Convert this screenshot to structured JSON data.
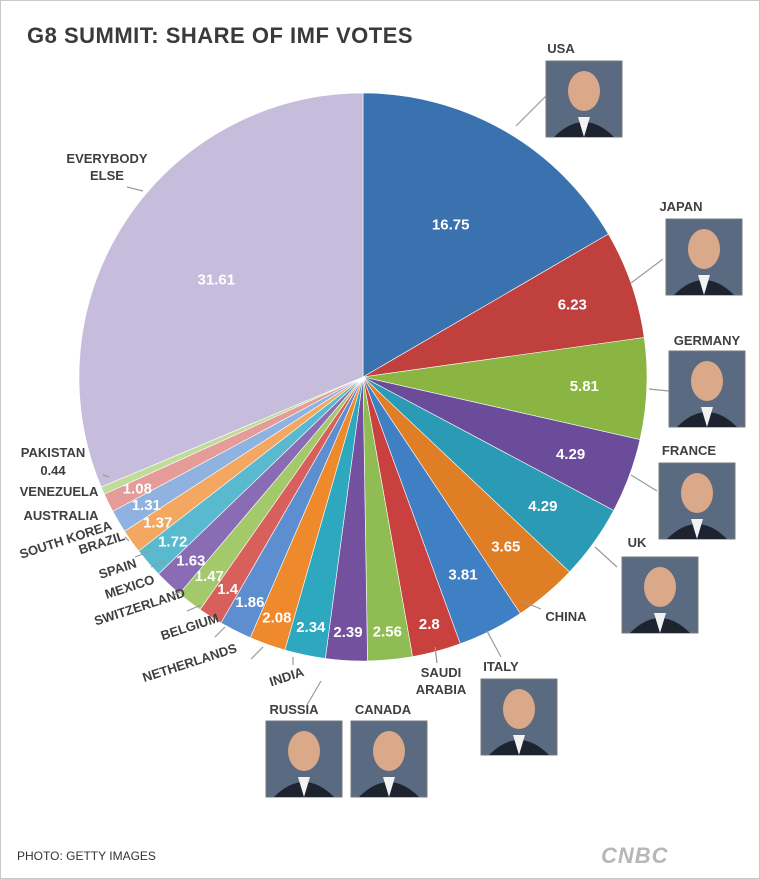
{
  "title": "G8 SUMMIT: SHARE OF IMF VOTES",
  "credit": "PHOTO: GETTY IMAGES",
  "brand": "CNBC",
  "chart_data": {
    "type": "pie",
    "title": "G8 SUMMIT: SHARE OF IMF VOTES",
    "slices": [
      {
        "label": "USA",
        "value": 16.75,
        "value_text": "16.75",
        "color": "#3a72b0",
        "photo": true
      },
      {
        "label": "JAPAN",
        "value": 6.23,
        "value_text": "6.23",
        "color": "#c0403d",
        "photo": true
      },
      {
        "label": "GERMANY",
        "value": 5.81,
        "value_text": "5.81",
        "color": "#8ab543",
        "photo": true
      },
      {
        "label": "FRANCE",
        "value": 4.29,
        "value_text": "4.29",
        "color": "#6b4c9a",
        "photo": true
      },
      {
        "label": "UK",
        "value": 4.29,
        "value_text": "4.29",
        "color": "#2b9ab5",
        "photo": true
      },
      {
        "label": "CHINA",
        "value": 3.65,
        "value_text": "3.65",
        "color": "#e07e25",
        "photo": false
      },
      {
        "label": "ITALY",
        "value": 3.81,
        "value_text": "3.81",
        "color": "#3f7fc4",
        "photo": true
      },
      {
        "label": "SAUDI ARABIA",
        "value": 2.8,
        "value_text": "2.8",
        "color": "#c9413e",
        "photo": false
      },
      {
        "label": "CANADA",
        "value": 2.56,
        "value_text": "2.56",
        "color": "#8fbd54",
        "photo": true
      },
      {
        "label": "RUSSIA",
        "value": 2.39,
        "value_text": "2.39",
        "color": "#73519f",
        "photo": true
      },
      {
        "label": "INDIA",
        "value": 2.34,
        "value_text": "2.34",
        "color": "#2ea8bf",
        "photo": false
      },
      {
        "label": "NETHERLANDS",
        "value": 2.08,
        "value_text": "2.08",
        "color": "#ef8a2c",
        "photo": false
      },
      {
        "label": "BELGIUM",
        "value": 1.86,
        "value_text": "1.86",
        "color": "#5d8fd0",
        "photo": false
      },
      {
        "label": "SWITZERLAND",
        "value": 1.4,
        "value_text": "1.4",
        "color": "#d8605c",
        "photo": false
      },
      {
        "label": "MEXICO",
        "value": 1.47,
        "value_text": "1.47",
        "color": "#a3c96b",
        "photo": false
      },
      {
        "label": "SPAIN",
        "value": 1.63,
        "value_text": "1.63",
        "color": "#8a6cb5",
        "photo": false
      },
      {
        "label": "BRAZIL",
        "value": 1.72,
        "value_text": "1.72",
        "color": "#59b9cf",
        "photo": false
      },
      {
        "label": "SOUTH KOREA",
        "value": 1.37,
        "value_text": "1.37",
        "color": "#f3a760",
        "photo": false
      },
      {
        "label": "AUSTRALIA",
        "value": 1.31,
        "value_text": "1.31",
        "color": "#8fb2e0",
        "photo": false
      },
      {
        "label": "VENEZUELA",
        "value": 1.08,
        "value_text": "1.08",
        "color": "#e59b98",
        "photo": false
      },
      {
        "label": "PAKISTAN",
        "value": 0.44,
        "value_text": "0.44",
        "color": "#bfdc98",
        "photo": false
      },
      {
        "label": "EVERYBODY ELSE",
        "value": 31.61,
        "value_text": "31.61",
        "color": "#c6bddc",
        "photo": false
      }
    ]
  }
}
